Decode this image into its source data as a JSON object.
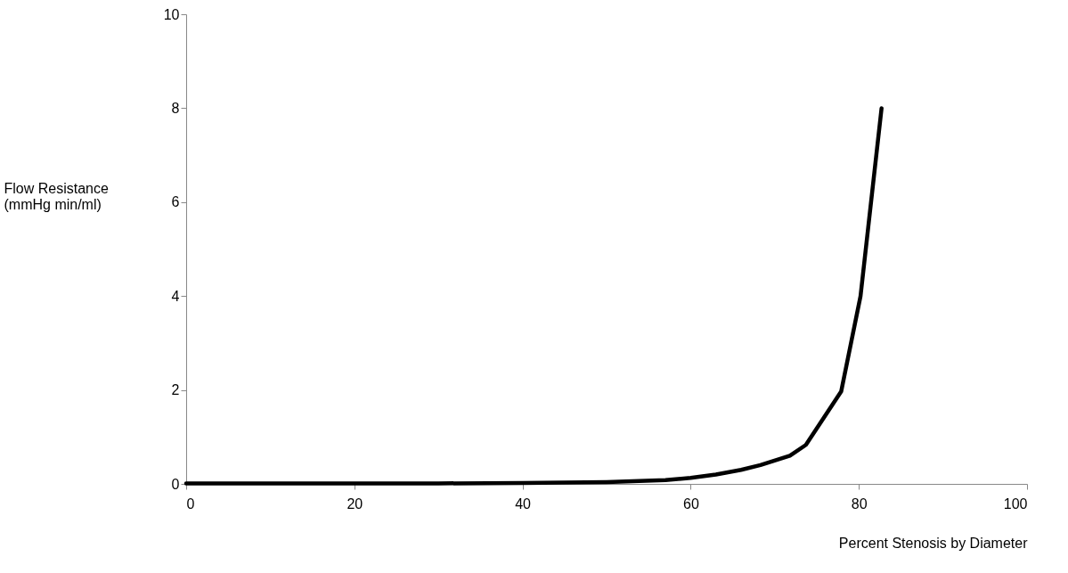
{
  "chart_data": {
    "type": "line",
    "xlabel": "Percent Stenosis by Diameter",
    "ylabel": "Flow Resistance (mmHg min/ml)",
    "x": [
      0,
      10,
      20,
      30,
      40,
      50,
      57,
      60,
      63,
      66,
      68.3,
      71.8,
      73.7,
      77.9,
      80.2,
      82.7
    ],
    "series": [
      {
        "color": "#000000",
        "values": [
          0.01,
          0.01,
          0.01,
          0.01,
          0.02,
          0.04,
          0.08,
          0.13,
          0.2,
          0.3,
          0.4,
          0.6,
          0.83,
          1.97,
          4,
          8
        ]
      }
    ],
    "xlim": [
      0,
      100
    ],
    "xticks": [
      0,
      20,
      40,
      60,
      80,
      100
    ],
    "ylim": [
      0,
      10
    ],
    "yticks": [
      0,
      2,
      4,
      6,
      8,
      10
    ],
    "grid": false,
    "marker": "none",
    "line_style": "solid"
  }
}
